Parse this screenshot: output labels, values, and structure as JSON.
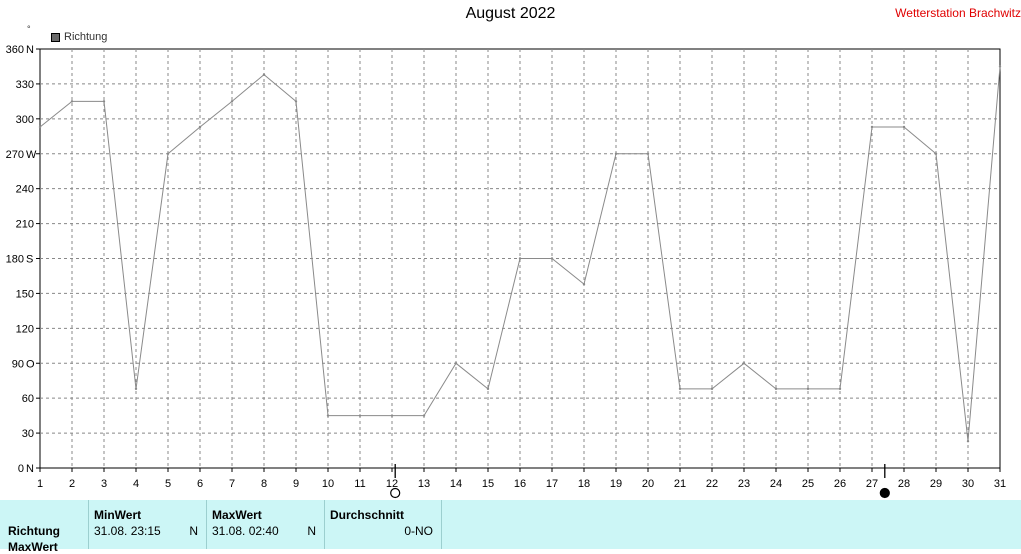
{
  "title": "August 2022",
  "station": "Wetterstation Brachwitz",
  "unit": "°",
  "legend": {
    "label": "Richtung",
    "color": "#6a6a6a"
  },
  "colors": {
    "line": "#8a8a8a",
    "grid": "#888888",
    "panel_bg": "#ccf6f6",
    "station": "#e00000"
  },
  "chart_data": {
    "type": "line",
    "title": "August 2022",
    "xlabel": "",
    "ylabel": "°",
    "xlim": [
      1,
      31
    ],
    "ylim": [
      0,
      360
    ],
    "grid": true,
    "legend_position": "top-left",
    "x_ticks": [
      1,
      2,
      3,
      4,
      5,
      6,
      7,
      8,
      9,
      10,
      11,
      12,
      13,
      14,
      15,
      16,
      17,
      18,
      19,
      20,
      21,
      22,
      23,
      24,
      25,
      26,
      27,
      28,
      29,
      30,
      31
    ],
    "y_ticks": [
      {
        "value": 0,
        "label": "0",
        "dir": "N"
      },
      {
        "value": 30,
        "label": "30",
        "dir": ""
      },
      {
        "value": 60,
        "label": "60",
        "dir": ""
      },
      {
        "value": 90,
        "label": "90",
        "dir": "O"
      },
      {
        "value": 120,
        "label": "120",
        "dir": ""
      },
      {
        "value": 150,
        "label": "150",
        "dir": ""
      },
      {
        "value": 180,
        "label": "180",
        "dir": "S"
      },
      {
        "value": 210,
        "label": "210",
        "dir": ""
      },
      {
        "value": 240,
        "label": "240",
        "dir": ""
      },
      {
        "value": 270,
        "label": "270",
        "dir": "W"
      },
      {
        "value": 300,
        "label": "300",
        "dir": ""
      },
      {
        "value": 330,
        "label": "330",
        "dir": ""
      },
      {
        "value": 360,
        "label": "360",
        "dir": "N"
      }
    ],
    "series": [
      {
        "name": "Richtung",
        "x": [
          1,
          2,
          3,
          4,
          5,
          6,
          7,
          8,
          9,
          10,
          11,
          12,
          13,
          14,
          15,
          16,
          17,
          18,
          19,
          20,
          21,
          22,
          23,
          24,
          25,
          26,
          27,
          28,
          29,
          30,
          31
        ],
        "values": [
          293,
          315,
          315,
          68,
          270,
          293,
          315,
          338,
          315,
          45,
          45,
          45,
          45,
          90,
          68,
          180,
          180,
          158,
          270,
          270,
          68,
          68,
          90,
          68,
          68,
          68,
          293,
          293,
          270,
          23,
          345
        ]
      }
    ],
    "moon_phases": [
      {
        "x": 12.1,
        "phase": "full"
      },
      {
        "x": 27.4,
        "phase": "new"
      }
    ]
  },
  "summary": {
    "row_label_1": "Richtung",
    "row_label_2": "MaxWert",
    "min": {
      "header": "MinWert",
      "datetime": "31.08.  23:15",
      "value": "N"
    },
    "max": {
      "header": "MaxWert",
      "datetime": "31.08.  02:40",
      "value": "N"
    },
    "avg": {
      "header": "Durchschnitt",
      "value": "0-NO"
    }
  }
}
